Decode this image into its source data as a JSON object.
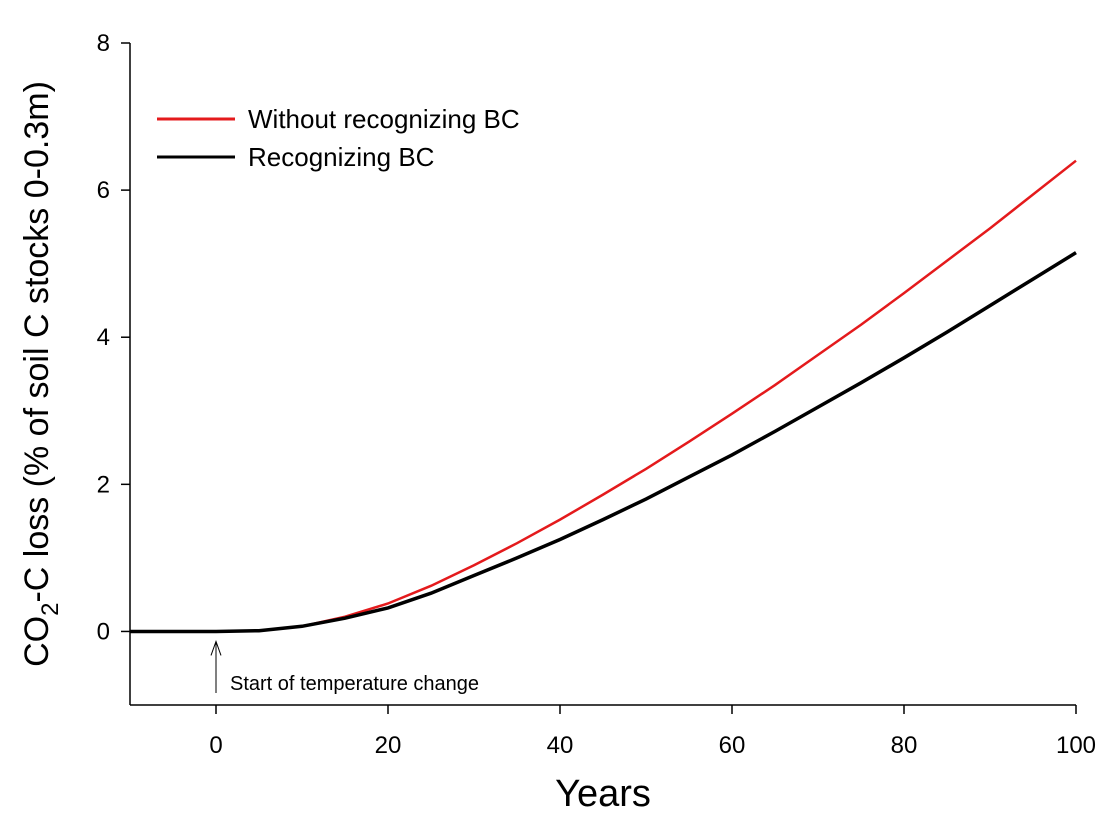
{
  "chart_data": {
    "type": "line",
    "xlabel": "Years",
    "ylabel": {
      "prefix": "CO",
      "sub": "2",
      "rest": "-C loss (% of soil C stocks 0-0.3m)"
    },
    "annotation": "Start of temperature change",
    "annotation_x": 0,
    "x": [
      -10,
      -5,
      0,
      5,
      10,
      15,
      20,
      25,
      30,
      35,
      40,
      45,
      50,
      55,
      60,
      65,
      70,
      75,
      80,
      85,
      90,
      95,
      100
    ],
    "series": [
      {
        "name": "Without recognizing BC",
        "color": "#e41a1c",
        "values": [
          0,
          0,
          0,
          0.01,
          0.07,
          0.2,
          0.38,
          0.62,
          0.9,
          1.2,
          1.52,
          1.86,
          2.21,
          2.58,
          2.96,
          3.35,
          3.76,
          4.17,
          4.6,
          5.04,
          5.48,
          5.94,
          6.4
        ]
      },
      {
        "name": "Recognizing BC",
        "color": "#000000",
        "values": [
          0,
          0,
          0,
          0.01,
          0.07,
          0.18,
          0.32,
          0.52,
          0.76,
          1.0,
          1.25,
          1.52,
          1.8,
          2.1,
          2.4,
          2.72,
          3.05,
          3.38,
          3.72,
          4.07,
          4.43,
          4.79,
          5.15
        ]
      }
    ],
    "xlim": [
      -10,
      100
    ],
    "xticks": [
      0,
      20,
      40,
      60,
      80,
      100
    ],
    "ylim": [
      -1,
      8
    ],
    "yticks": [
      0,
      2,
      4,
      6,
      8
    ],
    "legend": "upper left"
  }
}
